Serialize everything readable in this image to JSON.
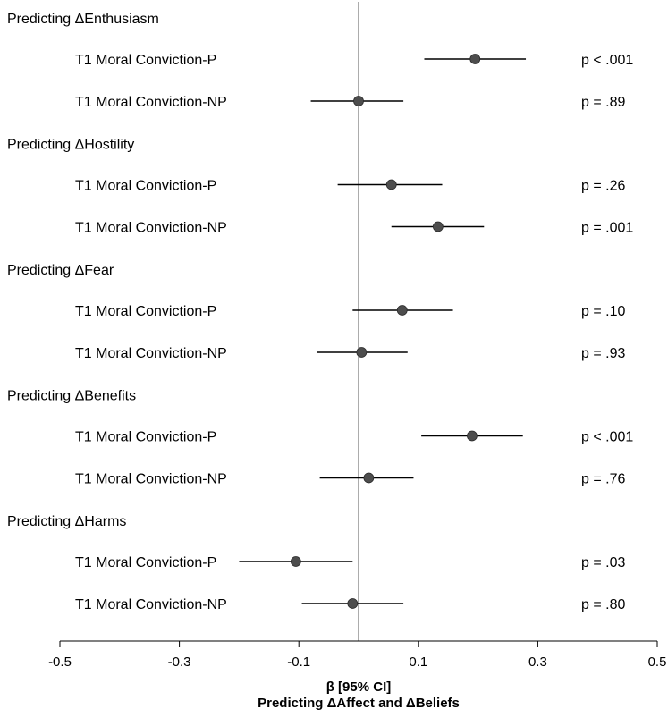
{
  "chart_data": {
    "type": "forest",
    "xlabel": "β [95% CI]",
    "subtitle": "Predicting ΔAffect  and ΔBeliefs",
    "xlim": [
      -0.5,
      0.5
    ],
    "xticks": [
      -0.5,
      -0.3,
      -0.1,
      0.1,
      0.3,
      0.5
    ],
    "xtick_labels": [
      "-0.5",
      "-0.3",
      "-0.1",
      "0.1",
      "0.3",
      "0.5"
    ],
    "reference_line": 0,
    "groups": [
      {
        "label": "Predicting ΔEnthusiasm",
        "rows": [
          {
            "label": "T1 Moral Conviction-P",
            "estimate": 0.195,
            "lower": 0.11,
            "upper": 0.28,
            "p": "p < .001"
          },
          {
            "label": "T1 Moral Conviction-NP",
            "estimate": 0.0,
            "lower": -0.08,
            "upper": 0.075,
            "p": "p = .89"
          }
        ]
      },
      {
        "label": "Predicting ΔHostility",
        "rows": [
          {
            "label": "T1 Moral Conviction-P",
            "estimate": 0.055,
            "lower": -0.035,
            "upper": 0.14,
            "p": "p = .26"
          },
          {
            "label": "T1 Moral Conviction-NP",
            "estimate": 0.133,
            "lower": 0.055,
            "upper": 0.21,
            "p": "p = .001"
          }
        ]
      },
      {
        "label": "Predicting ΔFear",
        "rows": [
          {
            "label": "T1 Moral Conviction-P",
            "estimate": 0.073,
            "lower": -0.01,
            "upper": 0.158,
            "p": "p = .10"
          },
          {
            "label": "T1 Moral Conviction-NP",
            "estimate": 0.005,
            "lower": -0.07,
            "upper": 0.082,
            "p": "p = .93"
          }
        ]
      },
      {
        "label": "Predicting ΔBenefits",
        "rows": [
          {
            "label": "T1 Moral Conviction-P",
            "estimate": 0.19,
            "lower": 0.105,
            "upper": 0.275,
            "p": "p < .001"
          },
          {
            "label": "T1 Moral Conviction-NP",
            "estimate": 0.017,
            "lower": -0.065,
            "upper": 0.092,
            "p": "p = .76"
          }
        ]
      },
      {
        "label": "Predicting ΔHarms",
        "rows": [
          {
            "label": "T1 Moral Conviction-P",
            "estimate": -0.105,
            "lower": -0.2,
            "upper": -0.01,
            "p": "p = .03"
          },
          {
            "label": "T1 Moral Conviction-NP",
            "estimate": -0.01,
            "lower": -0.095,
            "upper": 0.075,
            "p": "p = .80"
          }
        ]
      }
    ],
    "colors": {
      "marker": "#4d4d4d",
      "whisker": "#000000",
      "reference_line": "#808080",
      "axis": "#000000"
    }
  }
}
